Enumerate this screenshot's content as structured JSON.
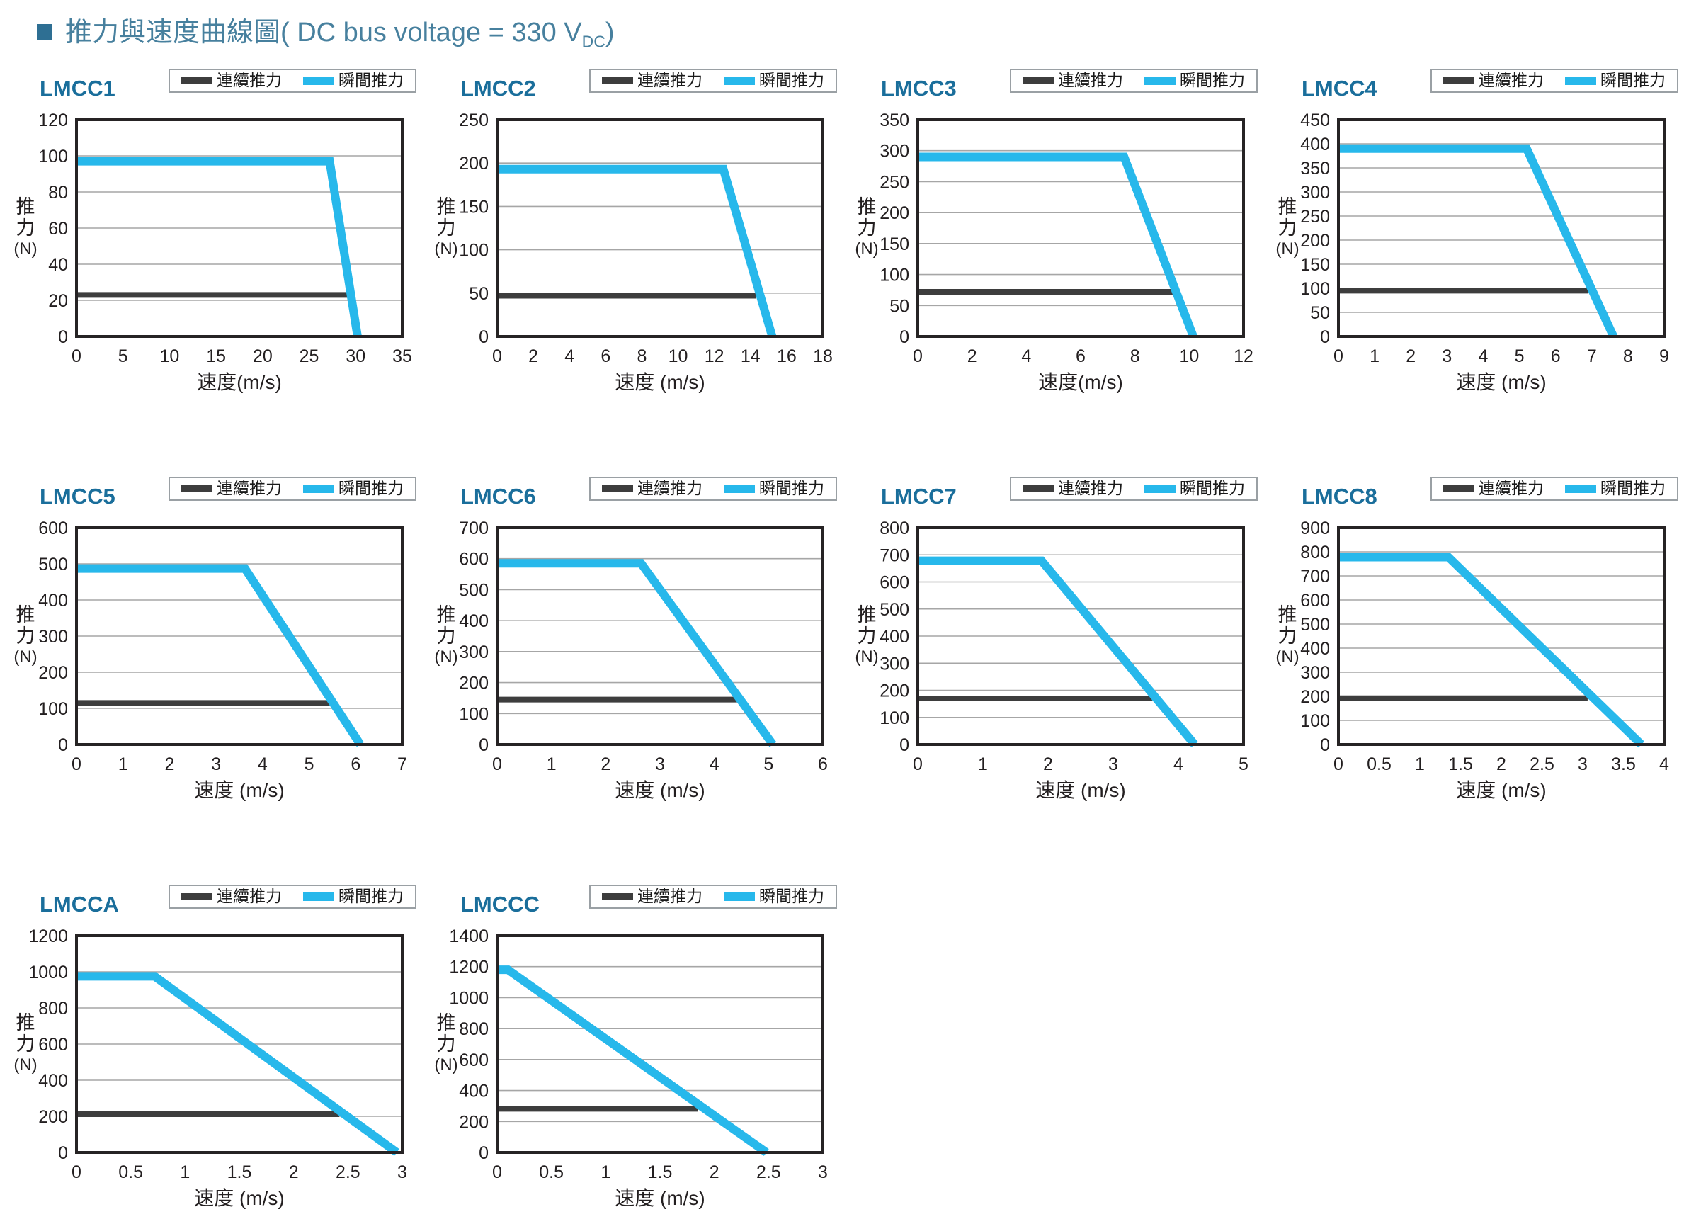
{
  "page": {
    "title_prefix": "推力與速度曲線圖( DC bus voltage = 330 V",
    "title_sub": "DC",
    "title_suffix": ")"
  },
  "legend": {
    "continuous": "連續推力",
    "instantaneous": "瞬間推力"
  },
  "colors": {
    "continuous": "#3d3d3d",
    "instantaneous": "#27b8eb",
    "grid": "#a6a6a6",
    "frame": "#262324",
    "chart_title": "#1a6e9b",
    "page_title": "#47809e"
  },
  "axis_labels": {
    "y": [
      "推",
      "力",
      "(N)"
    ]
  },
  "chart_data": [
    {
      "name": "LMCC1",
      "type": "line",
      "xlabel": "速度(m/s)",
      "ylabel": "推力(N)",
      "xlim": [
        0,
        35
      ],
      "ylim": [
        0,
        120
      ],
      "xticks": [
        0,
        5,
        10,
        15,
        20,
        25,
        30,
        35
      ],
      "yticks": [
        0,
        20,
        40,
        60,
        80,
        100,
        120
      ],
      "series": [
        {
          "name": "連續推力",
          "color_key": "continuous",
          "points": [
            [
              0,
              23
            ],
            [
              29.4,
              23
            ]
          ]
        },
        {
          "name": "瞬間推力",
          "color_key": "instantaneous",
          "points": [
            [
              0,
              97
            ],
            [
              27.2,
              97
            ],
            [
              30.2,
              0
            ]
          ]
        }
      ]
    },
    {
      "name": "LMCC2",
      "type": "line",
      "xlabel": "速度 (m/s)",
      "ylabel": "推力(N)",
      "xlim": [
        0,
        18
      ],
      "ylim": [
        0,
        250
      ],
      "xticks": [
        0,
        2,
        4,
        6,
        8,
        10,
        12,
        14,
        16,
        18
      ],
      "yticks": [
        0,
        50,
        100,
        150,
        200,
        250
      ],
      "series": [
        {
          "name": "連續推力",
          "color_key": "continuous",
          "points": [
            [
              0,
              47
            ],
            [
              14.3,
              47
            ]
          ]
        },
        {
          "name": "瞬間推力",
          "color_key": "instantaneous",
          "points": [
            [
              0,
              193
            ],
            [
              12.5,
              193
            ],
            [
              15.2,
              0
            ]
          ]
        }
      ]
    },
    {
      "name": "LMCC3",
      "type": "line",
      "xlabel": "速度(m/s)",
      "ylabel": "推力(N)",
      "xlim": [
        0,
        12
      ],
      "ylim": [
        0,
        350
      ],
      "xticks": [
        0,
        2,
        4,
        6,
        8,
        10,
        12
      ],
      "yticks": [
        0,
        50,
        100,
        150,
        200,
        250,
        300,
        350
      ],
      "series": [
        {
          "name": "連續推力",
          "color_key": "continuous",
          "points": [
            [
              0,
              72
            ],
            [
              9.4,
              72
            ]
          ]
        },
        {
          "name": "瞬間推力",
          "color_key": "instantaneous",
          "points": [
            [
              0,
              290
            ],
            [
              7.6,
              290
            ],
            [
              10.15,
              0
            ]
          ]
        }
      ]
    },
    {
      "name": "LMCC4",
      "type": "line",
      "xlabel": "速度 (m/s)",
      "ylabel": "推力(N)",
      "xlim": [
        0,
        9
      ],
      "ylim": [
        0,
        450
      ],
      "xticks": [
        0,
        1,
        2,
        3,
        4,
        5,
        6,
        7,
        8,
        9
      ],
      "yticks": [
        0,
        50,
        100,
        150,
        200,
        250,
        300,
        350,
        400,
        450
      ],
      "series": [
        {
          "name": "連續推力",
          "color_key": "continuous",
          "points": [
            [
              0,
              95
            ],
            [
              6.9,
              95
            ]
          ]
        },
        {
          "name": "瞬間推力",
          "color_key": "instantaneous",
          "points": [
            [
              0,
              390
            ],
            [
              5.2,
              390
            ],
            [
              7.6,
              0
            ]
          ]
        }
      ]
    },
    {
      "name": "LMCC5",
      "type": "line",
      "xlabel": "速度 (m/s)",
      "ylabel": "推力(N)",
      "xlim": [
        0,
        7
      ],
      "ylim": [
        0,
        600
      ],
      "xticks": [
        0,
        1,
        2,
        3,
        4,
        5,
        6,
        7
      ],
      "yticks": [
        0,
        100,
        200,
        300,
        400,
        500,
        600
      ],
      "series": [
        {
          "name": "連續推力",
          "color_key": "continuous",
          "points": [
            [
              0,
              115
            ],
            [
              5.45,
              115
            ]
          ]
        },
        {
          "name": "瞬間推力",
          "color_key": "instantaneous",
          "points": [
            [
              0,
              487
            ],
            [
              3.62,
              487
            ],
            [
              6.1,
              0
            ]
          ]
        }
      ]
    },
    {
      "name": "LMCC6",
      "type": "line",
      "xlabel": "速度 (m/s)",
      "ylabel": "推力(N)",
      "xlim": [
        0,
        6
      ],
      "ylim": [
        0,
        700
      ],
      "xticks": [
        0,
        1,
        2,
        3,
        4,
        5,
        6
      ],
      "yticks": [
        0,
        100,
        200,
        300,
        400,
        500,
        600,
        700
      ],
      "series": [
        {
          "name": "連續推力",
          "color_key": "continuous",
          "points": [
            [
              0,
              145
            ],
            [
              4.42,
              145
            ]
          ]
        },
        {
          "name": "瞬間推力",
          "color_key": "instantaneous",
          "points": [
            [
              0,
              585
            ],
            [
              2.65,
              585
            ],
            [
              5.08,
              0
            ]
          ]
        }
      ]
    },
    {
      "name": "LMCC7",
      "type": "line",
      "xlabel": "速度 (m/s)",
      "ylabel": "推力(N)",
      "xlim": [
        0,
        5
      ],
      "ylim": [
        0,
        800
      ],
      "xticks": [
        0,
        1,
        2,
        3,
        4,
        5
      ],
      "yticks": [
        0,
        100,
        200,
        300,
        400,
        500,
        600,
        700,
        800
      ],
      "series": [
        {
          "name": "連續推力",
          "color_key": "continuous",
          "points": [
            [
              0,
              170
            ],
            [
              3.6,
              170
            ]
          ]
        },
        {
          "name": "瞬間推力",
          "color_key": "instantaneous",
          "points": [
            [
              0,
              678
            ],
            [
              1.9,
              678
            ],
            [
              4.25,
              0
            ]
          ]
        }
      ]
    },
    {
      "name": "LMCC8",
      "type": "line",
      "xlabel": "速度 (m/s)",
      "ylabel": "推力(N)",
      "xlim": [
        0,
        4
      ],
      "ylim": [
        0,
        900
      ],
      "xticks": [
        0,
        0.5,
        1,
        1.5,
        2,
        2.5,
        3,
        3.5,
        4
      ],
      "yticks": [
        0,
        100,
        200,
        300,
        400,
        500,
        600,
        700,
        800,
        900
      ],
      "series": [
        {
          "name": "連續推力",
          "color_key": "continuous",
          "points": [
            [
              0,
              192
            ],
            [
              3.06,
              192
            ]
          ]
        },
        {
          "name": "瞬間推力",
          "color_key": "instantaneous",
          "points": [
            [
              0,
              778
            ],
            [
              1.35,
              778
            ],
            [
              3.72,
              0
            ]
          ]
        }
      ]
    },
    {
      "name": "LMCCA",
      "type": "line",
      "xlabel": "速度 (m/s)",
      "ylabel": "推力(N)",
      "xlim": [
        0,
        3
      ],
      "ylim": [
        0,
        1200
      ],
      "xticks": [
        0,
        0.5,
        1,
        1.5,
        2,
        2.5,
        3
      ],
      "yticks": [
        0,
        200,
        400,
        600,
        800,
        1000,
        1200
      ],
      "series": [
        {
          "name": "連續推力",
          "color_key": "continuous",
          "points": [
            [
              0,
              212
            ],
            [
              2.42,
              212
            ]
          ]
        },
        {
          "name": "瞬間推力",
          "color_key": "instantaneous",
          "points": [
            [
              0,
              975
            ],
            [
              0.72,
              975
            ],
            [
              2.95,
              0
            ]
          ]
        }
      ]
    },
    {
      "name": "LMCCC",
      "type": "line",
      "xlabel": "速度 (m/s)",
      "ylabel": "推力(N)",
      "xlim": [
        0,
        3
      ],
      "ylim": [
        0,
        1400
      ],
      "xticks": [
        0,
        0.5,
        1,
        1.5,
        2,
        2.5,
        3
      ],
      "yticks": [
        0,
        200,
        400,
        600,
        800,
        1000,
        1200,
        1400
      ],
      "series": [
        {
          "name": "連續推力",
          "color_key": "continuous",
          "points": [
            [
              0,
              282
            ],
            [
              1.85,
              282
            ]
          ]
        },
        {
          "name": "瞬間推力",
          "color_key": "instantaneous",
          "points": [
            [
              0,
              1180
            ],
            [
              0.1,
              1180
            ],
            [
              2.48,
              0
            ]
          ]
        }
      ]
    }
  ]
}
